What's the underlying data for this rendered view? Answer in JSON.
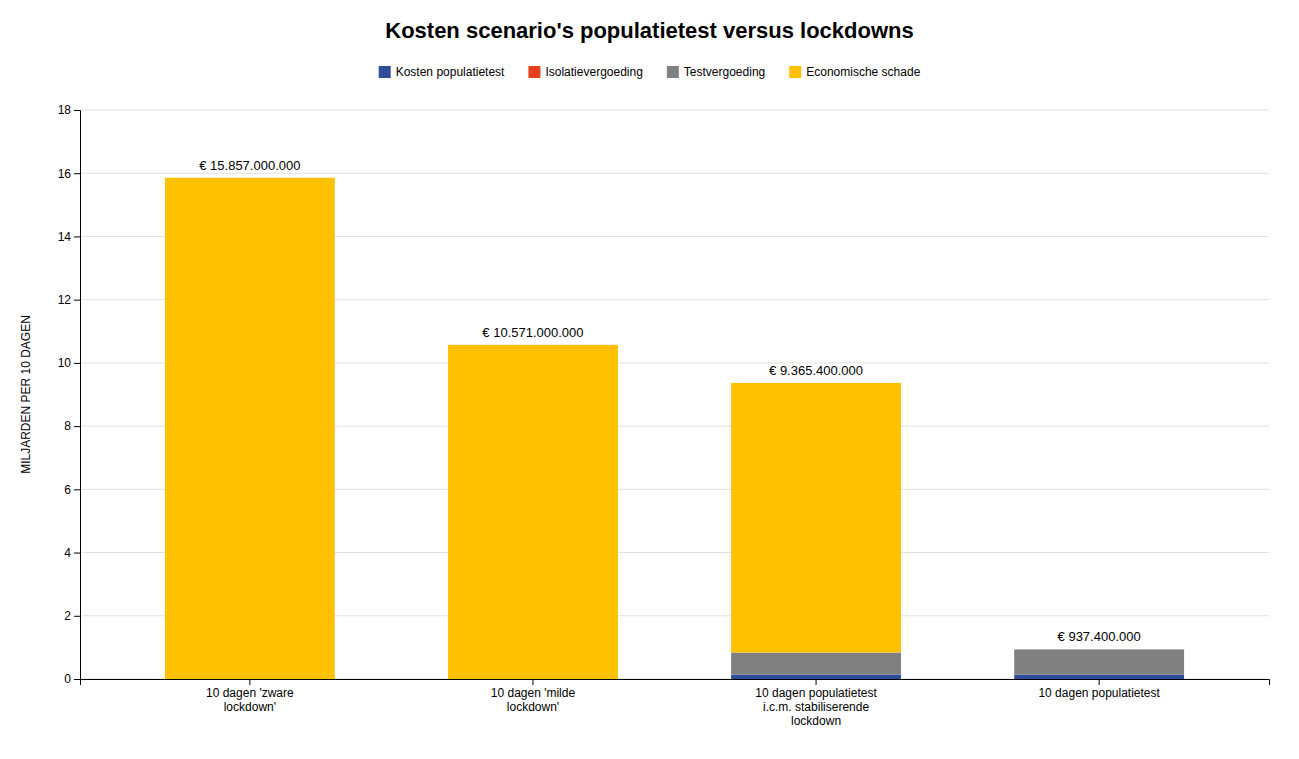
{
  "chart_data": {
    "type": "bar",
    "stacked": true,
    "title": "Kosten scenario's populatietest versus lockdowns",
    "ylabel": "MILJARDEN PER 10 DAGEN",
    "categories": [
      "10 dagen 'zware\nlockdown'",
      "10 dagen 'milde\nlockdown'",
      "10 dagen populatietest\ni.c.m. stabiliserende\nlockdown",
      "10 dagen populatietest"
    ],
    "series": [
      {
        "name": "Kosten populatietest",
        "color": "#2E4C99",
        "values": [
          0.0,
          0.0,
          0.142,
          0.142
        ]
      },
      {
        "name": "Isolatievergoeding",
        "color": "#E8401C",
        "values": [
          0.0,
          0.0,
          0.0,
          0.0
        ]
      },
      {
        "name": "Testvergoeding",
        "color": "#808080",
        "values": [
          0.0,
          0.0,
          0.695,
          0.795
        ]
      },
      {
        "name": "Economische schade",
        "color": "#FFC000",
        "values": [
          15.857,
          10.571,
          8.5284,
          0.0
        ]
      }
    ],
    "annotations": [
      {
        "bar": 0,
        "text": "€ 15.857.000.000"
      },
      {
        "bar": 1,
        "text": "€ 10.571.000.000"
      },
      {
        "bar": 2,
        "text": "€ 9.365.400.000"
      },
      {
        "bar": 3,
        "text": "€ 937.400.000"
      }
    ],
    "ylim": [
      0,
      18
    ],
    "yticks": [
      0,
      2,
      4,
      6,
      8,
      10,
      12,
      14,
      16,
      18
    ],
    "grid": true,
    "legend": "top"
  }
}
